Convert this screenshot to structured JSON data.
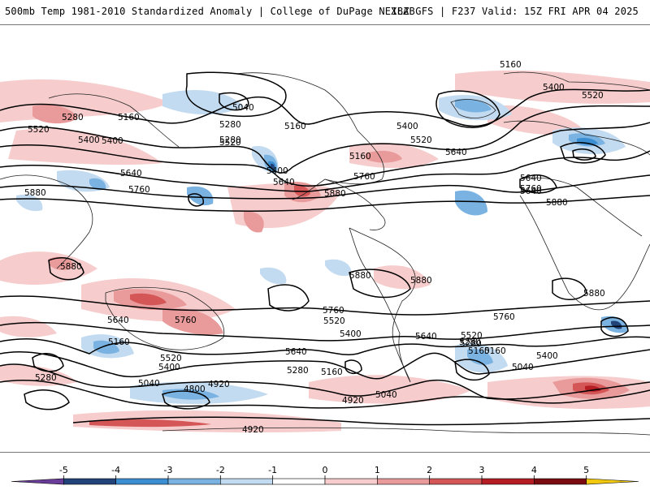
{
  "header": {
    "title_left": "500mb Temp 1981-2010 Standardized Anomaly | College of DuPage NEXLAB",
    "title_right": "18Z GFS | F237 Valid: 15Z FRI APR 04 2025"
  },
  "colorbar": {
    "ticks": [
      "-5",
      "-4",
      "-3",
      "-2",
      "-1",
      "0",
      "1",
      "2",
      "3",
      "4",
      "5"
    ],
    "colors": [
      "#6a3d9a",
      "#22427a",
      "#3b8ed2",
      "#7ab3e2",
      "#c3dbf0",
      "#ffffff",
      "#f6cccc",
      "#e99b9b",
      "#d45656",
      "#b51d24",
      "#7a0b10",
      "#f2c80f"
    ]
  },
  "contour_labels": [
    "5160",
    "5400",
    "5520",
    "5040",
    "5280",
    "5160",
    "5520",
    "5400",
    "5160",
    "5280",
    "5400",
    "5520",
    "5640",
    "5640",
    "5760",
    "5880",
    "5400",
    "5640",
    "5760",
    "5880",
    "5880",
    "5880",
    "5880",
    "5640",
    "5760",
    "5280",
    "5520",
    "5400",
    "5760",
    "5640",
    "5520",
    "5400",
    "5160",
    "5040",
    "5280",
    "5160",
    "5280",
    "5160",
    "4920",
    "4800",
    "4920",
    "5040",
    "5640",
    "5520",
    "5160",
    "5280",
    "5400",
    "5040",
    "4920",
    "5760",
    "5640",
    "5880",
    "5880",
    "5760",
    "5640",
    "5160",
    "5520",
    "5400",
    "5280"
  ]
}
